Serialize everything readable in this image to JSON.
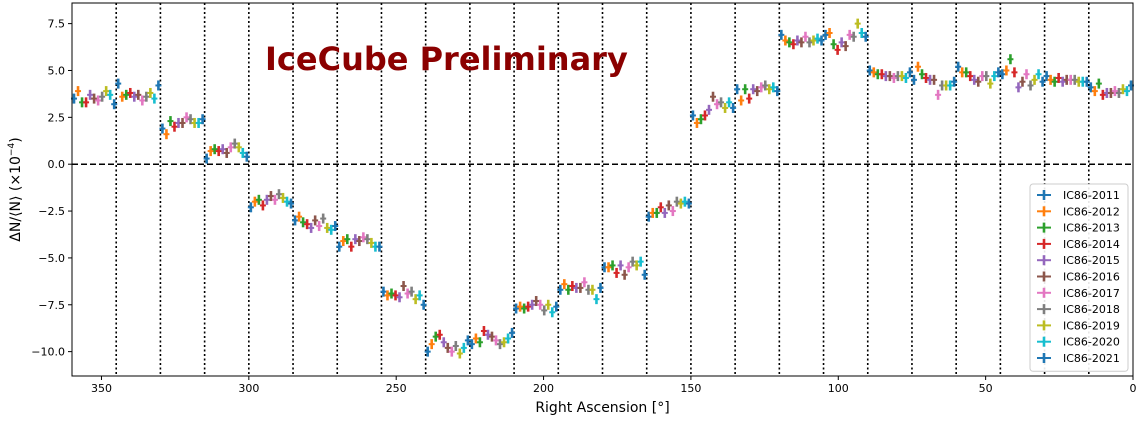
{
  "chart_data": {
    "type": "scatter",
    "title": "",
    "annotation": "IceCube Preliminary",
    "annotation_color": "#8b0000",
    "xlabel": "Right Ascension [°]",
    "ylabel_main": "ΔN/⟨N⟩ (×10",
    "ylabel_exp": "−4",
    "ylabel_close": ")",
    "xlim": [
      360,
      0
    ],
    "ylim": [
      -11.3,
      8.6
    ],
    "x_ticks": [
      350,
      300,
      250,
      200,
      150,
      100,
      50,
      0
    ],
    "y_ticks": [
      {
        "value": 7.5,
        "label": "7.5"
      },
      {
        "value": 5.0,
        "label": "5.0"
      },
      {
        "value": 2.5,
        "label": "2.5"
      },
      {
        "value": 0.0,
        "label": "0.0"
      },
      {
        "value": -2.5,
        "label": "−2.5"
      },
      {
        "value": -5.0,
        "label": "−5.0"
      },
      {
        "value": -7.5,
        "label": "−7.5"
      },
      {
        "value": -10.0,
        "label": "−10.0"
      }
    ],
    "bin_boundaries": [
      345,
      330,
      315,
      300,
      285,
      270,
      255,
      240,
      225,
      210,
      195,
      180,
      165,
      150,
      135,
      120,
      105,
      90,
      75,
      60,
      45,
      30,
      15
    ],
    "zero_line": 0,
    "legend_position": "bottom-right",
    "bins": [
      {
        "center": 352.5,
        "values": [
          3.5,
          3.9,
          3.3,
          3.3,
          3.7,
          3.5,
          3.4,
          3.6,
          3.9,
          3.7,
          3.2
        ]
      },
      {
        "center": 337.5,
        "values": [
          4.3,
          3.6,
          3.7,
          3.8,
          3.6,
          3.7,
          3.4,
          3.6,
          3.8,
          3.5,
          4.2
        ]
      },
      {
        "center": 322.5,
        "values": [
          1.9,
          1.6,
          2.3,
          2.0,
          2.2,
          2.2,
          2.5,
          2.4,
          2.2,
          2.2,
          2.4
        ]
      },
      {
        "center": 307.5,
        "values": [
          0.3,
          0.7,
          0.8,
          0.7,
          0.8,
          0.6,
          0.9,
          1.1,
          0.9,
          0.6,
          0.4
        ]
      },
      {
        "center": 292.5,
        "values": [
          -2.3,
          -2.0,
          -1.9,
          -2.2,
          -1.9,
          -1.7,
          -1.9,
          -1.6,
          -1.8,
          -2.0,
          -2.1
        ]
      },
      {
        "center": 277.5,
        "values": [
          -3.0,
          -2.8,
          -3.1,
          -3.2,
          -3.4,
          -3.0,
          -3.3,
          -2.9,
          -3.4,
          -3.5,
          -3.3
        ]
      },
      {
        "center": 262.5,
        "values": [
          -4.4,
          -4.1,
          -4.0,
          -4.4,
          -4.0,
          -4.1,
          -3.9,
          -4.0,
          -4.2,
          -4.4,
          -4.4
        ]
      },
      {
        "center": 247.5,
        "values": [
          -6.8,
          -7.0,
          -6.9,
          -7.0,
          -7.1,
          -6.5,
          -6.9,
          -6.8,
          -7.2,
          -7.0,
          -7.5
        ]
      },
      {
        "center": 232.5,
        "values": [
          -10.0,
          -9.6,
          -9.2,
          -9.1,
          -9.5,
          -9.8,
          -10.0,
          -9.7,
          -10.1,
          -9.8,
          -9.4
        ]
      },
      {
        "center": 217.5,
        "values": [
          -9.6,
          -9.3,
          -9.5,
          -8.9,
          -9.1,
          -9.2,
          -9.4,
          -9.6,
          -9.5,
          -9.3,
          -9.0
        ]
      },
      {
        "center": 202.5,
        "values": [
          -7.7,
          -7.6,
          -7.7,
          -7.6,
          -7.5,
          -7.3,
          -7.5,
          -7.8,
          -7.5,
          -7.9,
          -7.6
        ]
      },
      {
        "center": 187.5,
        "values": [
          -6.7,
          -6.4,
          -6.7,
          -6.5,
          -6.6,
          -6.6,
          -6.3,
          -6.7,
          -6.7,
          -7.2,
          -6.6
        ]
      },
      {
        "center": 172.5,
        "values": [
          -5.5,
          -5.5,
          -5.4,
          -5.8,
          -5.4,
          -5.9,
          -5.5,
          -5.2,
          -5.4,
          -5.2,
          -5.9
        ]
      },
      {
        "center": 157.5,
        "values": [
          -2.8,
          -2.6,
          -2.6,
          -2.3,
          -2.6,
          -2.2,
          -2.5,
          -2.0,
          -2.1,
          -2.0,
          -2.1
        ]
      },
      {
        "center": 142.5,
        "values": [
          2.6,
          2.2,
          2.4,
          2.6,
          2.9,
          3.6,
          3.2,
          3.3,
          3.0,
          3.3,
          3.0
        ]
      },
      {
        "center": 127.5,
        "values": [
          4.0,
          3.4,
          4.0,
          3.5,
          4.0,
          3.9,
          4.1,
          4.2,
          4.0,
          4.1,
          3.9
        ]
      },
      {
        "center": 112.5,
        "values": [
          6.9,
          6.6,
          6.5,
          6.4,
          6.6,
          6.5,
          6.8,
          6.5,
          6.6,
          6.7,
          6.6
        ]
      },
      {
        "center": 97.5,
        "values": [
          6.9,
          7.0,
          6.4,
          6.1,
          6.5,
          6.3,
          6.9,
          6.8,
          7.5,
          7.0,
          6.8
        ]
      },
      {
        "center": 82.5,
        "values": [
          5.0,
          4.9,
          4.8,
          4.8,
          4.7,
          4.7,
          4.6,
          4.7,
          4.7,
          4.6,
          4.9
        ]
      },
      {
        "center": 67.5,
        "values": [
          4.5,
          5.2,
          4.8,
          4.6,
          4.5,
          4.5,
          3.7,
          4.2,
          4.2,
          4.2,
          4.4
        ]
      },
      {
        "center": 52.5,
        "values": [
          5.2,
          4.9,
          4.9,
          4.7,
          4.5,
          4.4,
          4.7,
          4.7,
          4.3,
          4.7,
          4.9
        ]
      },
      {
        "center": 37.5,
        "values": [
          4.8,
          5.0,
          5.6,
          4.9,
          4.1,
          4.4,
          4.8,
          4.2,
          4.5,
          4.8,
          4.4
        ]
      },
      {
        "center": 22.5,
        "values": [
          4.7,
          4.5,
          4.4,
          4.6,
          4.4,
          4.5,
          4.5,
          4.5,
          4.4,
          4.4,
          4.4
        ]
      },
      {
        "center": 7.5,
        "values": [
          4.1,
          3.9,
          4.3,
          3.7,
          3.8,
          3.8,
          3.9,
          3.8,
          4.0,
          3.9,
          4.2
        ]
      }
    ],
    "series": [
      {
        "name": "IC86-2011",
        "color": "#1f77b4"
      },
      {
        "name": "IC86-2012",
        "color": "#ff7f0e"
      },
      {
        "name": "IC86-2013",
        "color": "#2ca02c"
      },
      {
        "name": "IC86-2014",
        "color": "#d62728"
      },
      {
        "name": "IC86-2015",
        "color": "#9467bd"
      },
      {
        "name": "IC86-2016",
        "color": "#8c564b"
      },
      {
        "name": "IC86-2017",
        "color": "#e377c2"
      },
      {
        "name": "IC86-2018",
        "color": "#7f7f7f"
      },
      {
        "name": "IC86-2019",
        "color": "#bcbd22"
      },
      {
        "name": "IC86-2020",
        "color": "#17becf"
      },
      {
        "name": "IC86-2021",
        "color": "#1f77b4"
      }
    ]
  }
}
